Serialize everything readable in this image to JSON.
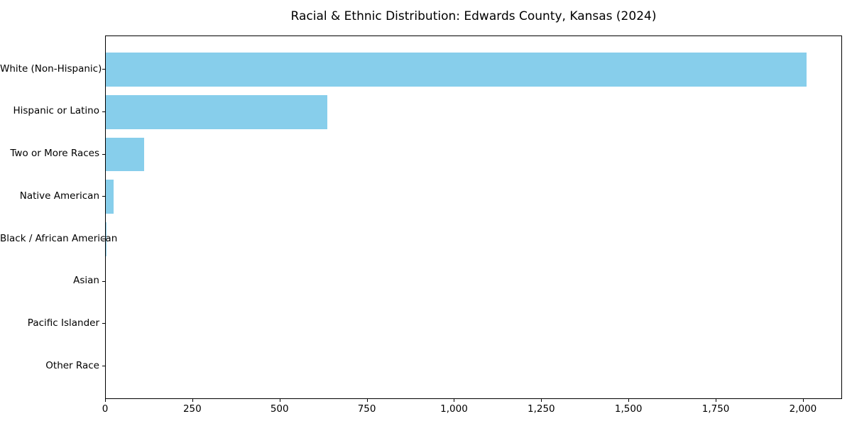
{
  "chart_data": {
    "type": "bar",
    "orientation": "horizontal",
    "title": "Racial & Ethnic Distribution: Edwards County, Kansas (2024)",
    "categories": [
      "White (Non-Hispanic)",
      "Hispanic or Latino",
      "Two or More Races",
      "Native American",
      "Black / African American",
      "Asian",
      "Pacific Islander",
      "Other Race"
    ],
    "values": [
      2010,
      635,
      110,
      22,
      2,
      0,
      0,
      0
    ],
    "bar_color": "#87CEEB",
    "xlabel": "",
    "ylabel": "",
    "xlim": [
      0,
      2110
    ],
    "x_ticks": [
      0,
      250,
      500,
      750,
      1000,
      1250,
      1500,
      1750,
      2000
    ],
    "x_tick_labels": [
      "0",
      "250",
      "500",
      "750",
      "1,000",
      "1,250",
      "1,500",
      "1,750",
      "2,000"
    ],
    "grid": false,
    "legend": null,
    "background_color": "#ffffff",
    "axis_color": "#000000"
  }
}
